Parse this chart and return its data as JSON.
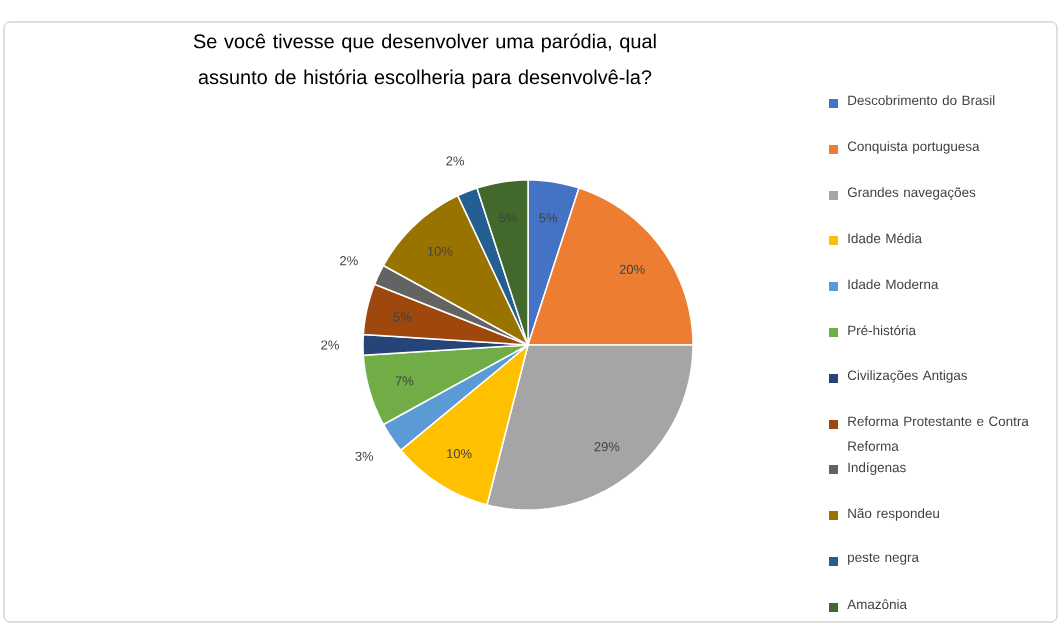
{
  "chart_data": {
    "type": "pie",
    "title": "Se você tivesse que desenvolver uma paródia, qual assunto de história escolheria para desenvolvê-la?",
    "categories": [
      "Descobrimento do Brasil",
      "Conquista portuguesa",
      "Grandes navegações",
      "Idade Média",
      "Idade Moderna",
      "Pré-história",
      "Civilizações Antigas",
      "Reforma Protestante e Contra Reforma",
      "Indígenas",
      "Não respondeu",
      "peste negra",
      "Amazônia"
    ],
    "values": [
      5,
      20,
      29,
      10,
      3,
      7,
      2,
      5,
      2,
      10,
      2,
      5
    ],
    "colors": [
      "#4472c4",
      "#ed7d31",
      "#a5a5a5",
      "#ffc000",
      "#5b9bd5",
      "#70ad47",
      "#264478",
      "#9e480e",
      "#636363",
      "#997300",
      "#255e91",
      "#43682b"
    ],
    "value_labels": [
      "5%",
      "20%",
      "29%",
      "10%",
      "3%",
      "7%",
      "2%",
      "5%",
      "2%",
      "10%",
      "2%",
      "5%"
    ],
    "legend": "right"
  }
}
